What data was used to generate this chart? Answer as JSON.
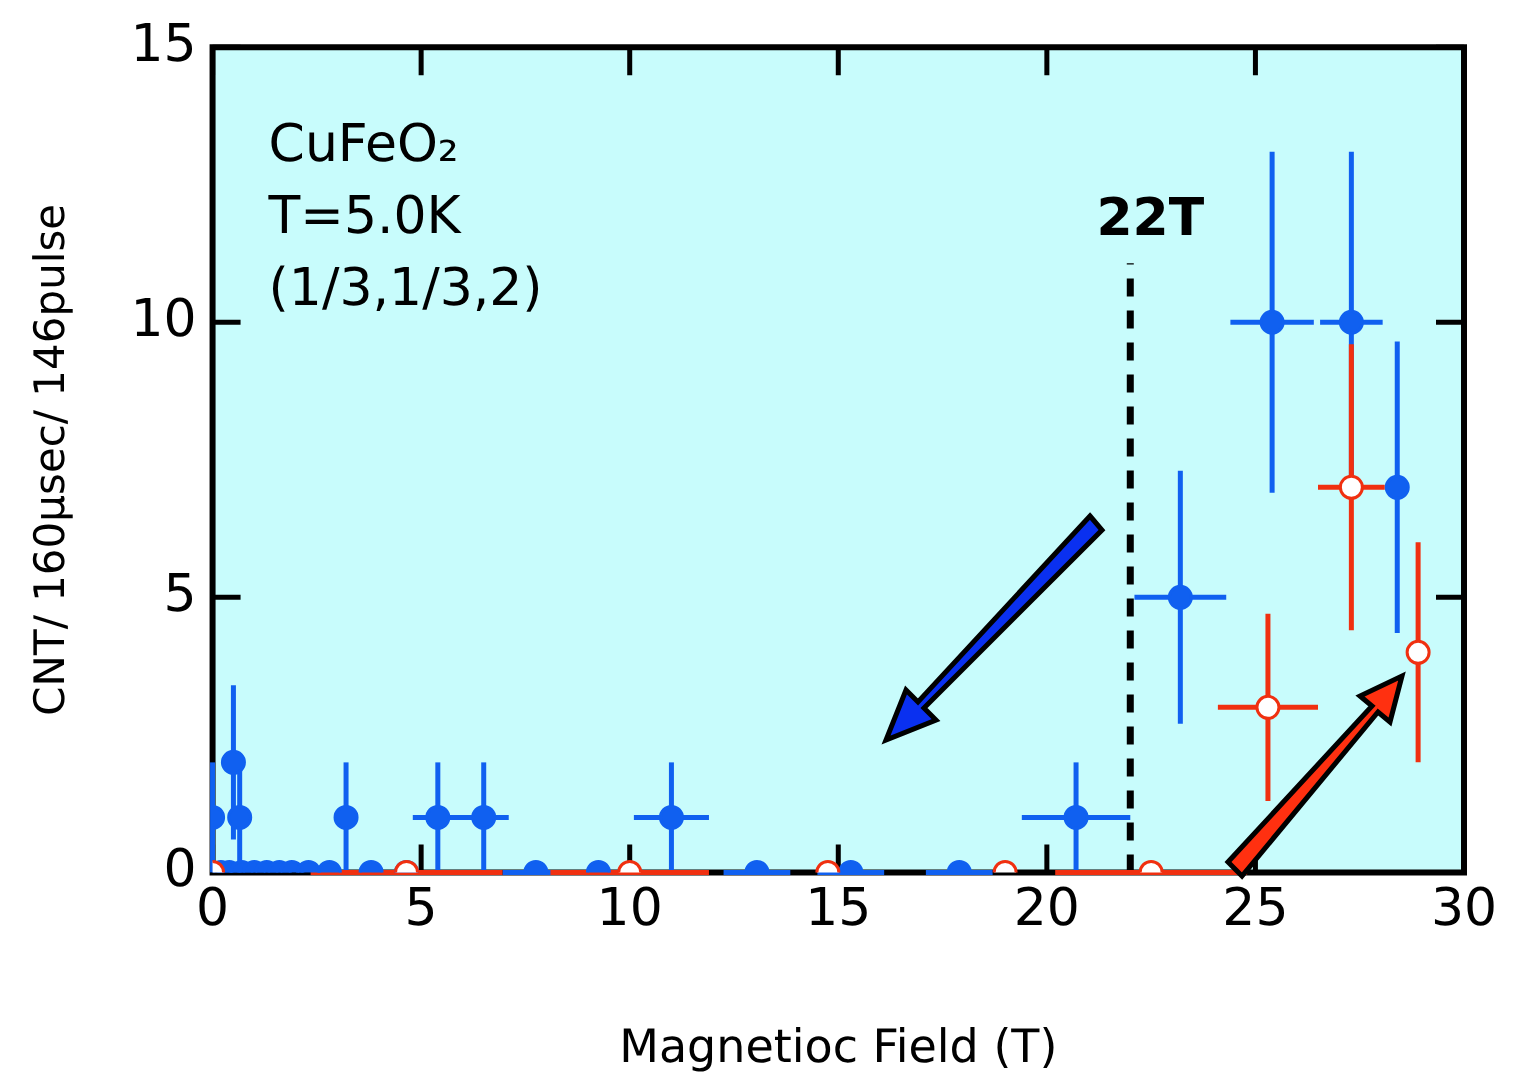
{
  "chart_data": {
    "type": "scatter",
    "xlabel": "Magnetioc Field (T)",
    "ylabel": "CNT/ 160μsec/ 146pulse",
    "annotations": [
      "CuFeO₂",
      "T=5.0K",
      "(1/3,1/3,2)"
    ],
    "xlim": [
      0,
      30
    ],
    "ylim": [
      0,
      15
    ],
    "xticks": [
      0,
      5,
      10,
      15,
      20,
      25,
      30
    ],
    "yticks": [
      0,
      5,
      10,
      15
    ],
    "grid": false,
    "legend": false,
    "marker": "circle",
    "ref_lines": [
      {
        "axis": "x",
        "value": 22,
        "label": "22T",
        "color": "#000000",
        "line_style": "dashed"
      }
    ],
    "series": [
      {
        "color": "#1060f0",
        "x": [
          0,
          0.2,
          0.4,
          0.5,
          0.65,
          0.7,
          1.0,
          1.3,
          1.6,
          1.9,
          2.3,
          2.8,
          3.2,
          3.8,
          4.65,
          5.4,
          6.5,
          7.75,
          9.25,
          11,
          13.05,
          15.3,
          17.9,
          20.7,
          23.2,
          25.4,
          27.3,
          28.4
        ],
        "values": [
          1,
          0,
          0,
          2,
          1,
          0,
          0,
          0,
          0,
          0,
          0,
          0,
          1,
          0,
          0,
          1,
          1,
          0,
          0,
          1,
          0,
          0,
          0,
          1,
          5,
          10,
          10,
          7
        ],
        "errors": [
          1,
          null,
          null,
          1.4,
          1,
          null,
          null,
          null,
          null,
          null,
          null,
          null,
          1,
          null,
          null,
          1,
          1,
          null,
          null,
          1,
          null,
          null,
          null,
          1,
          2.3,
          3.1,
          3.1,
          2.65
        ],
        "xerrors": [
          null,
          null,
          null,
          null,
          null,
          null,
          null,
          null,
          null,
          null,
          null,
          null,
          null,
          null,
          null,
          0.6,
          0.6,
          0.8,
          null,
          0.9,
          0.8,
          0.8,
          0.8,
          1.3,
          1.1,
          1,
          0.75,
          null
        ]
      },
      {
        "color": "#f03010",
        "x": [
          0,
          4.65,
          10,
          14.75,
          19,
          22.5,
          25.3,
          27.3,
          28.9
        ],
        "values": [
          0,
          0,
          0,
          0,
          0,
          0,
          3,
          7,
          4
        ],
        "errors": [
          null,
          null,
          null,
          null,
          null,
          null,
          1.7,
          2.6,
          2
        ],
        "xerrors": [
          null,
          2.3,
          1.9,
          null,
          null,
          2.3,
          1.2,
          0.8,
          null
        ]
      }
    ]
  }
}
